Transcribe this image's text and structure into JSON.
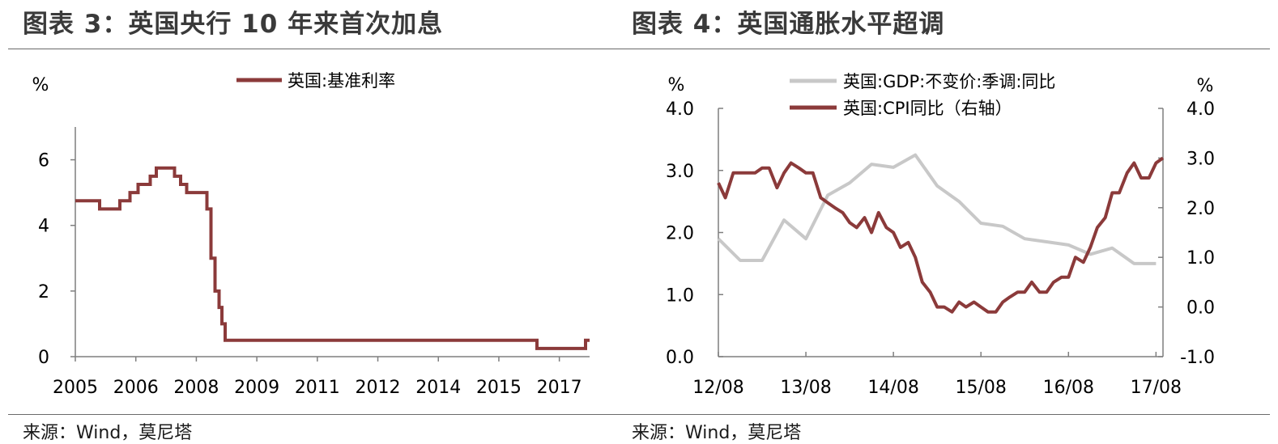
{
  "charts": [
    {
      "title": "图表 3：英国央行 10 年来首次加息",
      "source": "来源：Wind，莫尼塔"
    },
    {
      "title": "图表 4：英国通胀水平超调",
      "source": "来源：Wind，莫尼塔"
    }
  ],
  "chart_data": [
    {
      "type": "line",
      "title": "图表 3：英国央行 10 年来首次加息",
      "ylabel": "%",
      "ylim": [
        0,
        7
      ],
      "xlim": [
        2005.0,
        2017.7
      ],
      "x_tick_labels": [
        "2005",
        "2006",
        "2008",
        "2009",
        "2011",
        "2012",
        "2014",
        "2015",
        "2017"
      ],
      "y_ticks": [
        0,
        2,
        4,
        6
      ],
      "legend": "top",
      "series": [
        {
          "name": "英国:基准利率",
          "color": "#8B3A3A",
          "step": true,
          "points": [
            [
              2005.0,
              4.75
            ],
            [
              2005.6,
              4.5
            ],
            [
              2006.1,
              4.75
            ],
            [
              2006.35,
              5.0
            ],
            [
              2006.55,
              5.25
            ],
            [
              2006.85,
              5.5
            ],
            [
              2007.0,
              5.75
            ],
            [
              2007.45,
              5.5
            ],
            [
              2007.6,
              5.25
            ],
            [
              2007.75,
              5.0
            ],
            [
              2008.25,
              4.5
            ],
            [
              2008.35,
              3.0
            ],
            [
              2008.45,
              2.0
            ],
            [
              2008.55,
              1.5
            ],
            [
              2008.62,
              1.0
            ],
            [
              2008.7,
              0.5
            ],
            [
              2016.4,
              0.25
            ],
            [
              2017.6,
              0.5
            ]
          ]
        }
      ]
    },
    {
      "type": "line",
      "title": "图表 4：英国通胀水平超调",
      "x_tick_labels": [
        "12/08",
        "13/08",
        "14/08",
        "15/08",
        "16/08",
        "17/08"
      ],
      "y_left": {
        "label": "%",
        "lim": [
          0,
          4
        ],
        "ticks": [
          "0.0",
          "1.0",
          "2.0",
          "3.0",
          "4.0"
        ]
      },
      "y_right": {
        "label": "%",
        "lim": [
          -1,
          4
        ],
        "ticks": [
          "-1.0",
          "0.0",
          "1.0",
          "2.0",
          "3.0",
          "4.0"
        ]
      },
      "legend": "top",
      "series": [
        {
          "name": "英国:GDP:不变价:季调:同比",
          "axis": "left",
          "color": "#C8C8C8",
          "points": [
            [
              0.0,
              1.9
            ],
            [
              0.25,
              1.55
            ],
            [
              0.5,
              1.55
            ],
            [
              0.75,
              2.2
            ],
            [
              1.0,
              1.9
            ],
            [
              1.25,
              2.6
            ],
            [
              1.5,
              2.8
            ],
            [
              1.75,
              3.1
            ],
            [
              2.0,
              3.05
            ],
            [
              2.25,
              3.25
            ],
            [
              2.5,
              2.75
            ],
            [
              2.75,
              2.5
            ],
            [
              3.0,
              2.15
            ],
            [
              3.25,
              2.1
            ],
            [
              3.5,
              1.9
            ],
            [
              3.75,
              1.85
            ],
            [
              4.0,
              1.8
            ],
            [
              4.25,
              1.65
            ],
            [
              4.5,
              1.75
            ],
            [
              4.75,
              1.5
            ],
            [
              5.0,
              1.5
            ]
          ]
        },
        {
          "name": "英国:CPI同比（右轴）",
          "axis": "right",
          "color": "#8B3A3A",
          "points": [
            [
              0.0,
              2.5
            ],
            [
              0.08,
              2.2
            ],
            [
              0.17,
              2.7
            ],
            [
              0.25,
              2.7
            ],
            [
              0.33,
              2.7
            ],
            [
              0.42,
              2.7
            ],
            [
              0.5,
              2.8
            ],
            [
              0.58,
              2.8
            ],
            [
              0.67,
              2.4
            ],
            [
              0.75,
              2.7
            ],
            [
              0.83,
              2.9
            ],
            [
              0.92,
              2.8
            ],
            [
              1.0,
              2.7
            ],
            [
              1.08,
              2.7
            ],
            [
              1.17,
              2.2
            ],
            [
              1.25,
              2.1
            ],
            [
              1.33,
              2.0
            ],
            [
              1.42,
              1.9
            ],
            [
              1.5,
              1.7
            ],
            [
              1.58,
              1.6
            ],
            [
              1.67,
              1.8
            ],
            [
              1.75,
              1.5
            ],
            [
              1.83,
              1.9
            ],
            [
              1.92,
              1.6
            ],
            [
              2.0,
              1.5
            ],
            [
              2.08,
              1.2
            ],
            [
              2.17,
              1.3
            ],
            [
              2.25,
              1.0
            ],
            [
              2.33,
              0.5
            ],
            [
              2.42,
              0.3
            ],
            [
              2.5,
              0.0
            ],
            [
              2.58,
              0.0
            ],
            [
              2.67,
              -0.1
            ],
            [
              2.75,
              0.1
            ],
            [
              2.83,
              0.0
            ],
            [
              2.92,
              0.1
            ],
            [
              3.0,
              0.0
            ],
            [
              3.08,
              -0.1
            ],
            [
              3.17,
              -0.1
            ],
            [
              3.25,
              0.1
            ],
            [
              3.33,
              0.2
            ],
            [
              3.42,
              0.3
            ],
            [
              3.5,
              0.3
            ],
            [
              3.58,
              0.5
            ],
            [
              3.67,
              0.3
            ],
            [
              3.75,
              0.3
            ],
            [
              3.83,
              0.5
            ],
            [
              3.92,
              0.6
            ],
            [
              4.0,
              0.6
            ],
            [
              4.08,
              1.0
            ],
            [
              4.17,
              0.9
            ],
            [
              4.25,
              1.2
            ],
            [
              4.33,
              1.6
            ],
            [
              4.42,
              1.8
            ],
            [
              4.5,
              2.3
            ],
            [
              4.58,
              2.3
            ],
            [
              4.67,
              2.7
            ],
            [
              4.75,
              2.9
            ],
            [
              4.83,
              2.6
            ],
            [
              4.92,
              2.6
            ],
            [
              5.0,
              2.9
            ],
            [
              5.08,
              3.0
            ]
          ]
        }
      ]
    }
  ]
}
